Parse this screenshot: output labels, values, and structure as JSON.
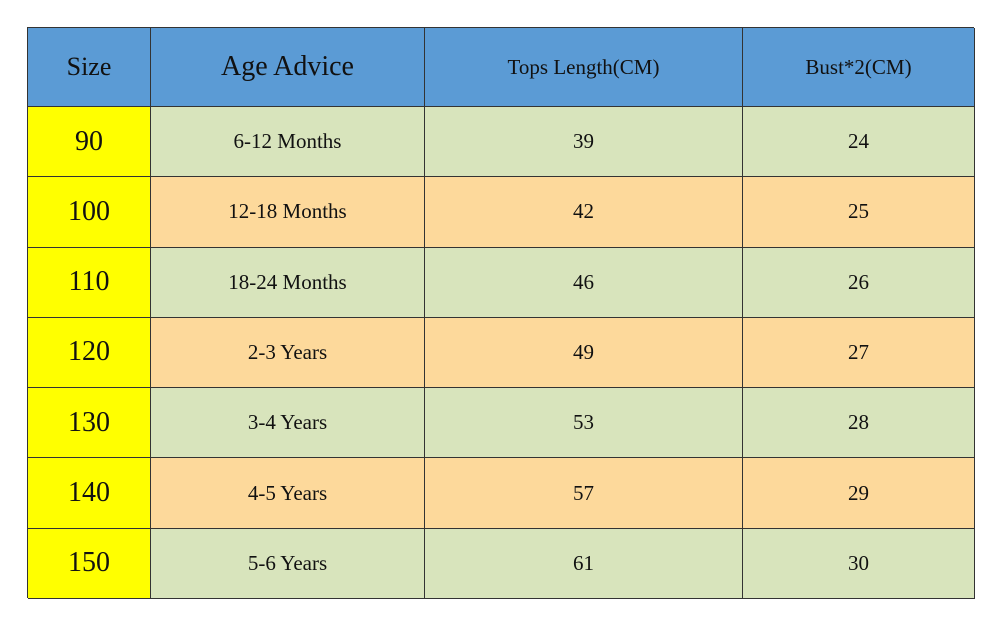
{
  "table": {
    "header": [
      "Size",
      "Age Advice",
      "Tops Length(CM)",
      "Bust*2(CM)"
    ],
    "rows": [
      [
        90,
        "6-12 Months",
        39,
        24
      ],
      [
        100,
        "12-18 Months",
        42,
        25
      ],
      [
        110,
        "18-24 Months",
        46,
        26
      ],
      [
        120,
        "2-3 Years",
        49,
        27
      ],
      [
        130,
        "3-4 Years",
        53,
        28
      ],
      [
        140,
        "4-5 Years",
        57,
        29
      ],
      [
        150,
        "5-6 Years",
        61,
        30
      ]
    ]
  }
}
